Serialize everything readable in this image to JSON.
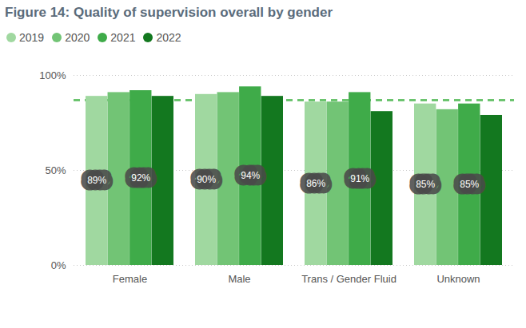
{
  "chart_data": {
    "type": "bar",
    "title": "Figure 14: Quality of supervision overall by gender",
    "categories": [
      "Female",
      "Male",
      "Trans / Gender Fluid",
      "Unknown"
    ],
    "series": [
      {
        "name": "2019",
        "color": "#a0d8a0",
        "values": [
          89,
          90,
          86,
          85
        ],
        "data_labels": true,
        "value_labels": [
          "89%",
          "90%",
          "86%",
          "85%"
        ]
      },
      {
        "name": "2020",
        "color": "#72c475",
        "values": [
          91,
          91,
          86,
          82
        ]
      },
      {
        "name": "2021",
        "color": "#3fab49",
        "values": [
          92,
          94,
          91,
          85
        ],
        "data_labels": true,
        "value_labels": [
          "92%",
          "94%",
          "91%",
          "85%"
        ]
      },
      {
        "name": "2022",
        "color": "#13781f",
        "values": [
          89,
          89,
          81,
          79
        ]
      }
    ],
    "ylim": [
      0,
      100
    ],
    "yticks": [
      {
        "value": 0,
        "label": "0%"
      },
      {
        "value": 50,
        "label": "50%"
      },
      {
        "value": 100,
        "label": "100%"
      }
    ],
    "grid": true,
    "legend": "top-left",
    "reference_line": 87
  }
}
